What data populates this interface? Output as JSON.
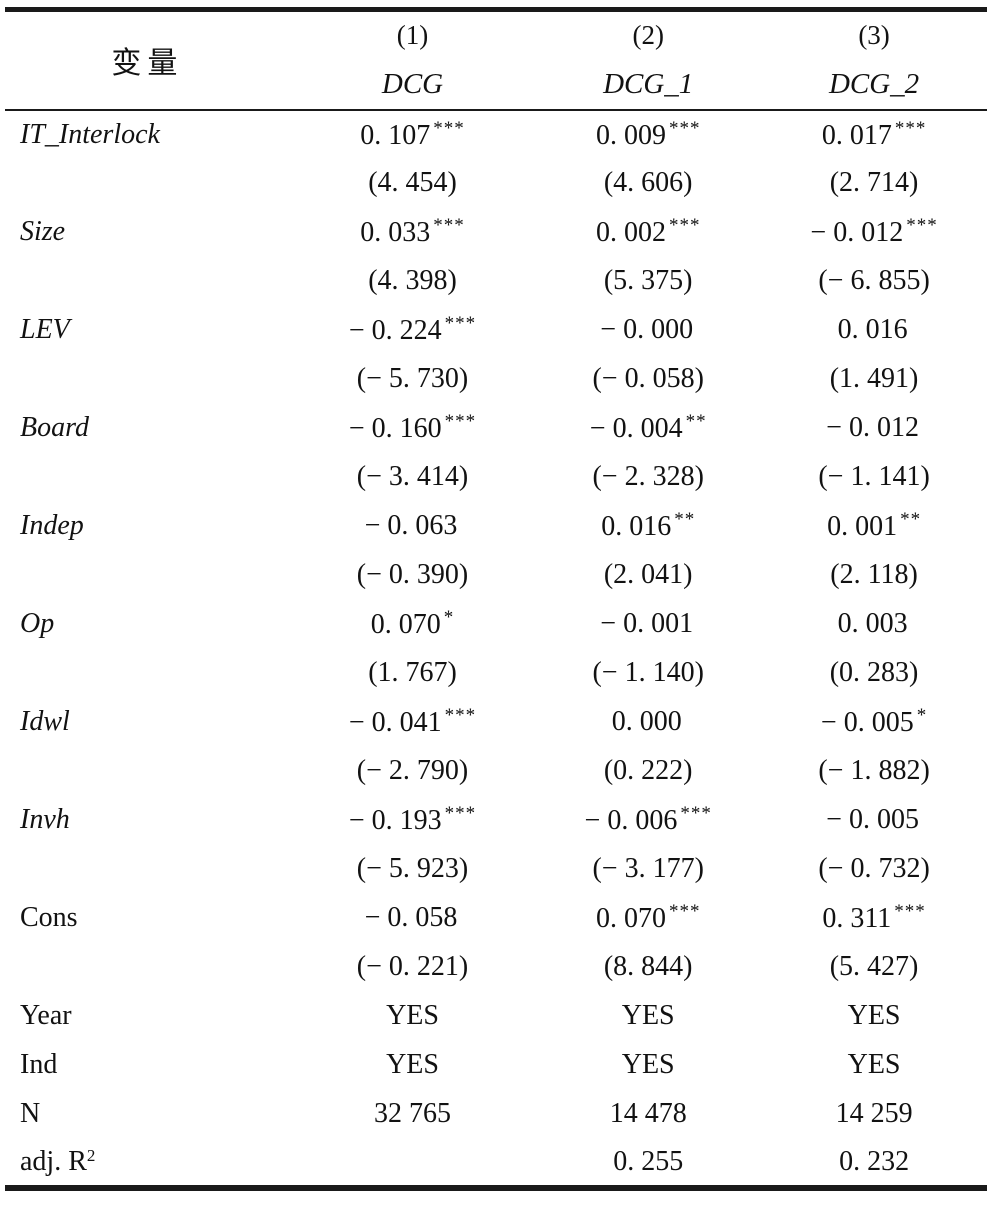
{
  "table": {
    "header": {
      "var_label": "变量",
      "cols": [
        {
          "num": "(1)",
          "name": "DCG"
        },
        {
          "num": "(2)",
          "name": "DCG_1"
        },
        {
          "num": "(3)",
          "name": "DCG_2"
        }
      ]
    },
    "rows": [
      {
        "label": "IT_Interlock",
        "italic": true,
        "cells": [
          {
            "v": "0. 107",
            "s": "***"
          },
          {
            "v": "0. 009",
            "s": "***"
          },
          {
            "v": "0. 017",
            "s": "***"
          }
        ],
        "t": [
          "(4. 454)",
          "(4. 606)",
          "(2. 714)"
        ]
      },
      {
        "label": "Size",
        "italic": true,
        "cells": [
          {
            "v": "0. 033",
            "s": "***"
          },
          {
            "v": "0. 002",
            "s": "***"
          },
          {
            "v": "− 0. 012",
            "s": "***"
          }
        ],
        "t": [
          "(4. 398)",
          "(5. 375)",
          "(− 6. 855)"
        ]
      },
      {
        "label": "LEV",
        "italic": true,
        "cells": [
          {
            "v": "− 0. 224",
            "s": "***"
          },
          {
            "v": "− 0. 000",
            "s": ""
          },
          {
            "v": "0. 016",
            "s": ""
          }
        ],
        "t": [
          "(− 5. 730)",
          "(− 0. 058)",
          "(1. 491)"
        ]
      },
      {
        "label": "Board",
        "italic": true,
        "cells": [
          {
            "v": "− 0. 160",
            "s": "***"
          },
          {
            "v": "− 0. 004",
            "s": "**"
          },
          {
            "v": "− 0. 012",
            "s": ""
          }
        ],
        "t": [
          "(− 3. 414)",
          "(− 2. 328)",
          "(− 1. 141)"
        ]
      },
      {
        "label": "Indep",
        "italic": true,
        "cells": [
          {
            "v": "− 0. 063",
            "s": ""
          },
          {
            "v": "0. 016",
            "s": "**"
          },
          {
            "v": "0. 001",
            "s": "**"
          }
        ],
        "t": [
          "(− 0. 390)",
          "(2. 041)",
          "(2. 118)"
        ]
      },
      {
        "label": "Op",
        "italic": true,
        "cells": [
          {
            "v": "0. 070",
            "s": "*"
          },
          {
            "v": "− 0. 001",
            "s": ""
          },
          {
            "v": "0. 003",
            "s": ""
          }
        ],
        "t": [
          "(1. 767)",
          "(− 1. 140)",
          "(0. 283)"
        ]
      },
      {
        "label": "Idwl",
        "italic": true,
        "cells": [
          {
            "v": "− 0. 041",
            "s": "***"
          },
          {
            "v": "0. 000",
            "s": ""
          },
          {
            "v": "− 0. 005",
            "s": "*"
          }
        ],
        "t": [
          "(− 2. 790)",
          "(0. 222)",
          "(− 1. 882)"
        ]
      },
      {
        "label": "Invh",
        "italic": true,
        "cells": [
          {
            "v": "− 0. 193",
            "s": "***"
          },
          {
            "v": "− 0. 006",
            "s": "***"
          },
          {
            "v": "− 0. 005",
            "s": ""
          }
        ],
        "t": [
          "(− 5. 923)",
          "(− 3. 177)",
          "(− 0. 732)"
        ]
      },
      {
        "label": "Cons",
        "italic": false,
        "cells": [
          {
            "v": "− 0. 058",
            "s": ""
          },
          {
            "v": "0. 070",
            "s": "***"
          },
          {
            "v": "0. 311",
            "s": "***"
          }
        ],
        "t": [
          "(− 0. 221)",
          "(8. 844)",
          "(5. 427)"
        ]
      }
    ],
    "stats": [
      {
        "label": "Year",
        "sup": "",
        "vals": [
          "YES",
          "YES",
          "YES"
        ]
      },
      {
        "label": "Ind",
        "sup": "",
        "vals": [
          "YES",
          "YES",
          "YES"
        ]
      },
      {
        "label": "N",
        "sup": "",
        "vals": [
          "32 765",
          "14 478",
          "14 259"
        ]
      },
      {
        "label": "adj. R",
        "sup": "2",
        "vals": [
          "",
          "0. 255",
          "0. 232"
        ]
      }
    ]
  }
}
